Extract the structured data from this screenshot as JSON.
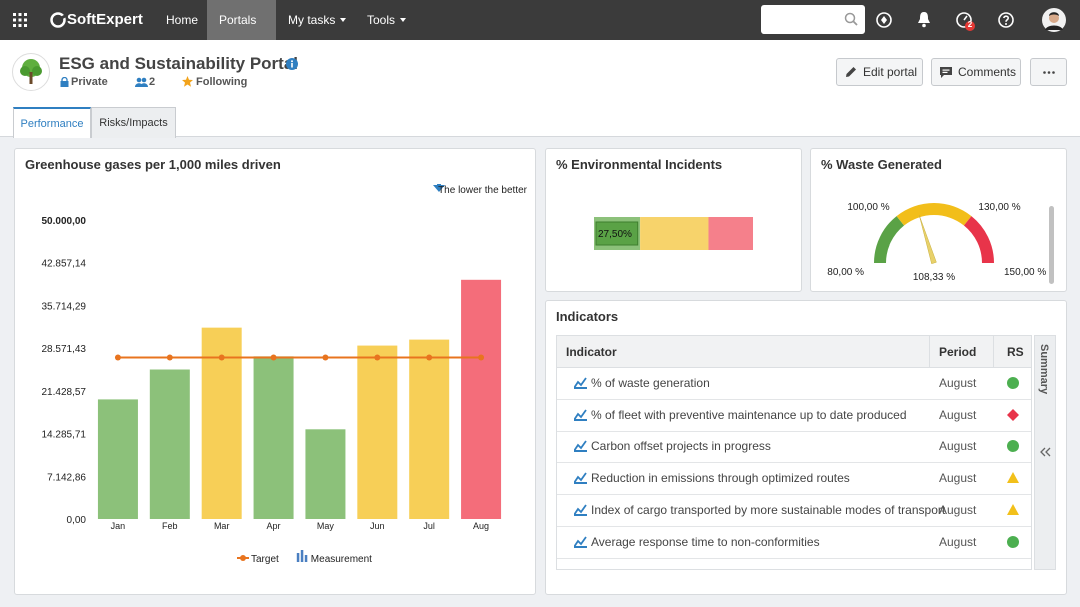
{
  "nav": {
    "brand": "SoftExpert",
    "items": [
      "Home",
      "Portals",
      "My tasks",
      "Tools"
    ],
    "badge": "2"
  },
  "header": {
    "title": "ESG and Sustainability Portal",
    "privacy": "Private",
    "members": "2",
    "following": "Following",
    "buttons": [
      "Edit portal",
      "Comments"
    ]
  },
  "tabs": [
    "Performance",
    "Risks/Impacts"
  ],
  "chart_data": [
    {
      "type": "bar",
      "title": "Greenhouse gases per 1,000 miles driven",
      "annotation": "The lower the better",
      "categories": [
        "Jan",
        "Feb",
        "Mar",
        "Apr",
        "May",
        "Jun",
        "Jul",
        "Aug"
      ],
      "series": [
        {
          "name": "Measurement",
          "color": "#4a7fc1",
          "colors": [
            "#8cc17a",
            "#8cc17a",
            "#f7cf57",
            "#8cc17a",
            "#8cc17a",
            "#f7cf57",
            "#f7cf57",
            "#f46d7a"
          ],
          "values": [
            20000,
            25000,
            32000,
            27200,
            15000,
            29000,
            30000,
            40000
          ]
        },
        {
          "name": "Target",
          "color": "#e8741f",
          "values": [
            27000,
            27000,
            27000,
            27000,
            27000,
            27000,
            27000,
            27000
          ]
        }
      ],
      "ylim": [
        0,
        50000
      ],
      "yticks": [
        {
          "value": 0,
          "label": "0,00"
        },
        {
          "value": 7142.86,
          "label": "7.142,86"
        },
        {
          "value": 14285.71,
          "label": "14.285,71"
        },
        {
          "value": 21428.57,
          "label": "21.428,57"
        },
        {
          "value": 28571.43,
          "label": "28.571,43"
        },
        {
          "value": 35714.29,
          "label": "35.714,29"
        },
        {
          "value": 42857.14,
          "label": "42.857,14"
        },
        {
          "value": 50000,
          "label": "50.000,00"
        }
      ]
    },
    {
      "type": "bullet",
      "title": "% Environmental Incidents",
      "xlim": [
        0,
        100
      ],
      "bands": [
        {
          "value": 29,
          "color": "#8cc17a"
        },
        {
          "value": 43,
          "color": "#f7d36b"
        },
        {
          "value": 28,
          "color": "#f5808b"
        }
      ],
      "values": [
        27.5
      ],
      "value_labels": [
        "27,50%"
      ],
      "color": "#5aa246"
    },
    {
      "type": "gauge",
      "title": "% Waste Generated",
      "ylim": [
        80,
        150
      ],
      "yticks": [
        {
          "value": 80,
          "label": "80,00 %"
        },
        {
          "value": 100,
          "label": "100,00 %"
        },
        {
          "value": 130,
          "label": "130,00 %"
        },
        {
          "value": 150,
          "label": "150,00 %"
        }
      ],
      "bands": [
        {
          "value": 20,
          "color": "#5aa246"
        },
        {
          "value": 30,
          "color": "#f2be1a"
        },
        {
          "value": 20,
          "color": "#e8344a"
        }
      ],
      "values": [
        108.33
      ],
      "value_labels": [
        "108,33 %"
      ],
      "color": "#e8d16a"
    }
  ],
  "indicators": {
    "title": "Indicators",
    "side_tab": "Summary",
    "table": {
      "header": [
        "Indicator",
        "Period",
        "RS"
      ],
      "rows": [
        [
          "% of waste generation",
          "August"
        ],
        [
          "% of fleet with preventive maintenance up to date produced",
          "August"
        ],
        [
          "Carbon offset projects in progress",
          "August"
        ],
        [
          "Reduction in emissions through optimized routes",
          "August"
        ],
        [
          "Index of cargo transported by more sustainable modes of transport",
          "August"
        ],
        [
          "Average response time to non-conformities",
          "August"
        ]
      ]
    }
  }
}
